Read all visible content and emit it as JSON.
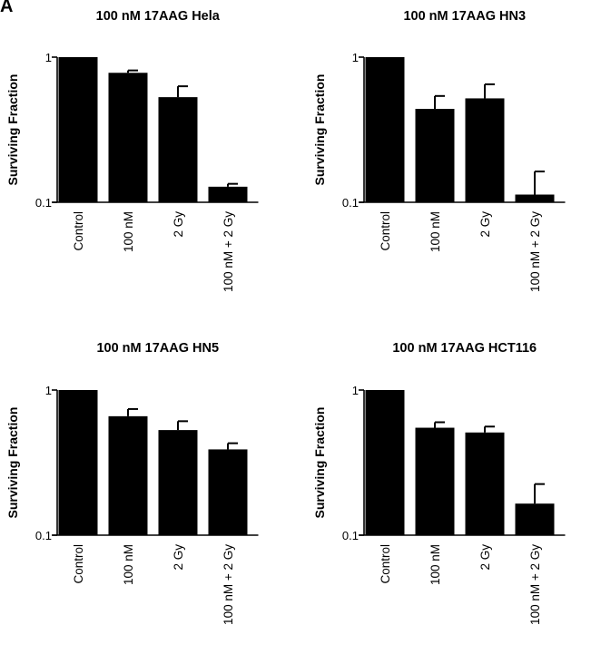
{
  "figure": {
    "panel_letter": "A"
  },
  "chart_data": [
    {
      "type": "bar",
      "title": "100 nM 17AAG Hela",
      "ylabel": "Surviving Fraction",
      "xlabel": "",
      "yscale": "log",
      "ylim": [
        0.1,
        1
      ],
      "yticks": [
        {
          "value": 1,
          "label": "1"
        },
        {
          "value": 0.1,
          "label": "0.1"
        }
      ],
      "categories": [
        "Control",
        "100 nM",
        "2 Gy",
        "100 nM + 2 Gy"
      ],
      "values": [
        1.0,
        0.78,
        0.53,
        0.128
      ],
      "errors": [
        0,
        0.03,
        0.1,
        0.006
      ],
      "bar_color": "#000000"
    },
    {
      "type": "bar",
      "title": "100 nM 17AAG HN3",
      "ylabel": "Surviving Fraction",
      "xlabel": "",
      "yscale": "log",
      "ylim": [
        0.1,
        1
      ],
      "yticks": [
        {
          "value": 1,
          "label": "1"
        },
        {
          "value": 0.1,
          "label": "0.1"
        }
      ],
      "categories": [
        "Control",
        "100 nM",
        "2 Gy",
        "100 nM + 2 Gy"
      ],
      "values": [
        1.0,
        0.44,
        0.52,
        0.113
      ],
      "errors": [
        0,
        0.1,
        0.13,
        0.05
      ],
      "bar_color": "#000000"
    },
    {
      "type": "bar",
      "title": "100 nM 17AAG HN5",
      "ylabel": "Surviving Fraction",
      "xlabel": "",
      "yscale": "log",
      "ylim": [
        0.1,
        1
      ],
      "yticks": [
        {
          "value": 1,
          "label": "1"
        },
        {
          "value": 0.1,
          "label": "0.1"
        }
      ],
      "categories": [
        "Control",
        "100 nM",
        "2 Gy",
        "100 nM + 2 Gy"
      ],
      "values": [
        1.0,
        0.66,
        0.53,
        0.39
      ],
      "errors": [
        0,
        0.08,
        0.08,
        0.04
      ],
      "bar_color": "#000000"
    },
    {
      "type": "bar",
      "title": "100 nM 17AAG HCT116",
      "ylabel": "Surviving Fraction",
      "xlabel": "",
      "yscale": "log",
      "ylim": [
        0.1,
        1
      ],
      "yticks": [
        {
          "value": 1,
          "label": "1"
        },
        {
          "value": 0.1,
          "label": "0.1"
        }
      ],
      "categories": [
        "Control",
        "100 nM",
        "2 Gy",
        "100 nM + 2 Gy"
      ],
      "values": [
        1.0,
        0.55,
        0.51,
        0.165
      ],
      "errors": [
        0,
        0.05,
        0.05,
        0.06
      ],
      "bar_color": "#000000"
    }
  ]
}
